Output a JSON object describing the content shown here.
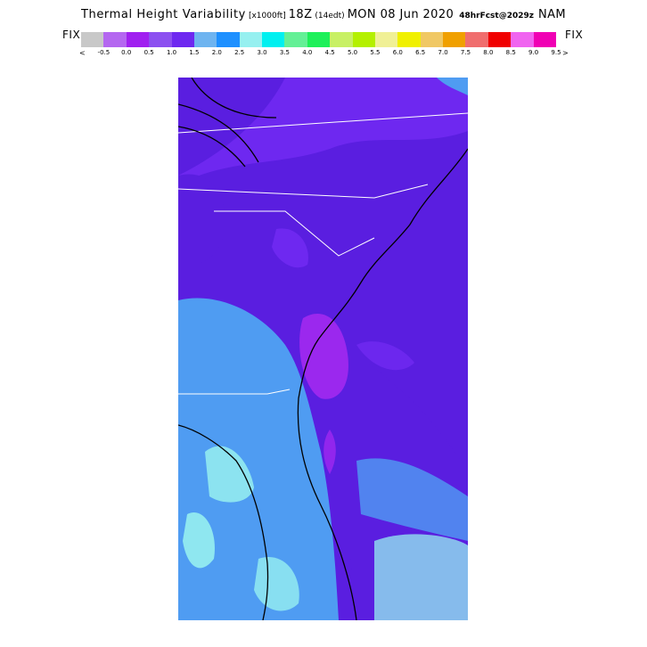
{
  "header": {
    "title": "Thermal Height Variability",
    "units": "[x1000ft]",
    "valid_time": "18Z",
    "local_time": "(14edt)",
    "date": "MON 08 Jun 2020",
    "forecast": "48hrFcst@2029z",
    "model": "NAM"
  },
  "colorbar": {
    "fix_left": "FIX",
    "fix_right": "FIX",
    "arrow_left": "<",
    "arrow_right": ">",
    "swatches": [
      "#c8c8c8",
      "#b467f0",
      "#a020f0",
      "#8c50f0",
      "#6e28f0",
      "#6eb4f0",
      "#1e90ff",
      "#96f0f0",
      "#00f0f0",
      "#64f096",
      "#1ef05a",
      "#c8f064",
      "#b4f000",
      "#f0f096",
      "#f0f000",
      "#f0c864",
      "#f0a000",
      "#f06e6e",
      "#f00000",
      "#f064f0",
      "#f000b4"
    ],
    "tick_labels": [
      "-0.5",
      "0.0",
      "0.5",
      "1.0",
      "1.5",
      "2.0",
      "2.5",
      "3.0",
      "3.5",
      "4.0",
      "4.5",
      "5.0",
      "5.5",
      "6.0",
      "6.5",
      "7.0",
      "7.5",
      "8.0",
      "8.5",
      "9.0",
      "9.5"
    ]
  },
  "map": {
    "region": "US Southeast Atlantic coast",
    "colors": {
      "deep_purple": "#5a1ee0",
      "violet": "#6e28f0",
      "purple_core": "#9b28ee",
      "light_blue": "#4f9cf2",
      "cyan": "#96f0f0",
      "coast_line": "#000000",
      "state_line": "#ffffff"
    }
  }
}
